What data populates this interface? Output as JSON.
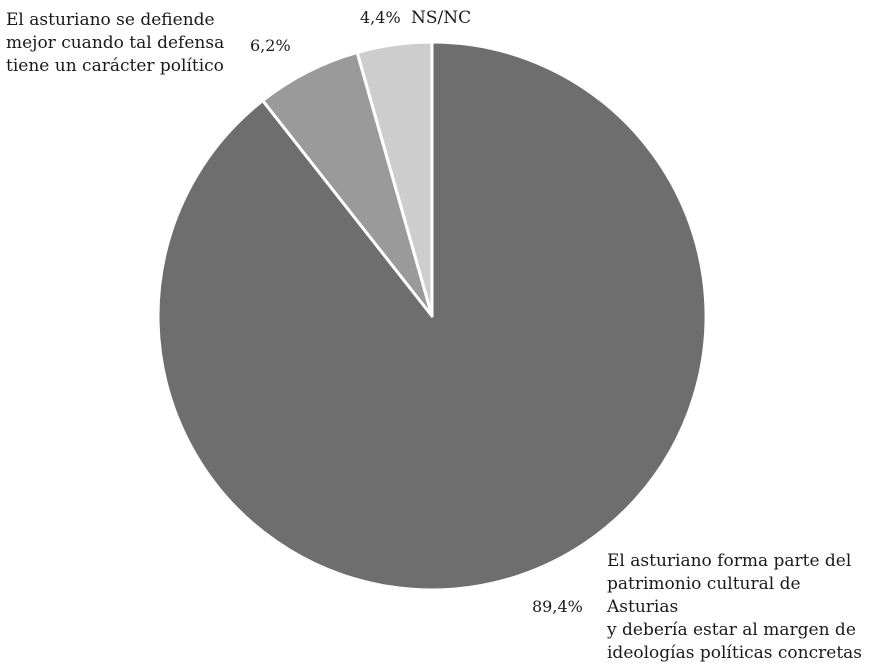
{
  "chart_data": {
    "type": "pie",
    "slices": [
      {
        "label": "El asturiano forma parte del\npatrimonio cultural de Asturias\ny debería estar al margen de\nideologías políticas concretas",
        "value": 89.4,
        "value_label": "89,4%",
        "color": "#6e6e6e"
      },
      {
        "label": "El asturiano se defiende\nmejor cuando tal defensa\ntiene un carácter político",
        "value": 6.2,
        "value_label": "6,2%",
        "color": "#9a9a9a"
      },
      {
        "label": "NS/NC",
        "value": 4.4,
        "value_label": "4,4%",
        "color": "#cdcdcd"
      }
    ]
  }
}
